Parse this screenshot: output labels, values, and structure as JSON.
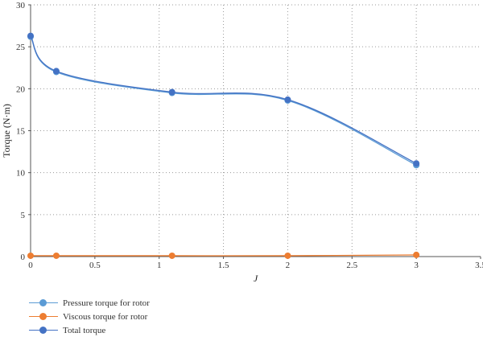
{
  "chart_data": {
    "type": "line",
    "xlabel": "J",
    "ylabel": "Torque (N·m)",
    "xlim": [
      0,
      3.5
    ],
    "ylim": [
      0,
      30
    ],
    "xticks": [
      "0",
      "0.5",
      "1",
      "1.5",
      "2",
      "2.5",
      "3",
      "3.5"
    ],
    "yticks": [
      "0",
      "5",
      "10",
      "15",
      "20",
      "25",
      "30"
    ],
    "grid": true,
    "legend_position": "bottom-left",
    "series": [
      {
        "name": "Pressure torque for rotor",
        "color": "#5b9bd5",
        "x": [
          0,
          0.2,
          1.1,
          2,
          3
        ],
        "y": [
          26.2,
          22.0,
          19.5,
          18.6,
          10.9
        ]
      },
      {
        "name": "Viscous torque for rotor",
        "color": "#ed7d31",
        "x": [
          0,
          0.2,
          1.1,
          2,
          3
        ],
        "y": [
          0.1,
          0.1,
          0.1,
          0.1,
          0.2
        ]
      },
      {
        "name": "Total torque",
        "color": "#4472c4",
        "x": [
          0,
          0.2,
          1.1,
          2,
          3
        ],
        "y": [
          26.3,
          22.1,
          19.6,
          18.7,
          11.1
        ]
      }
    ]
  }
}
